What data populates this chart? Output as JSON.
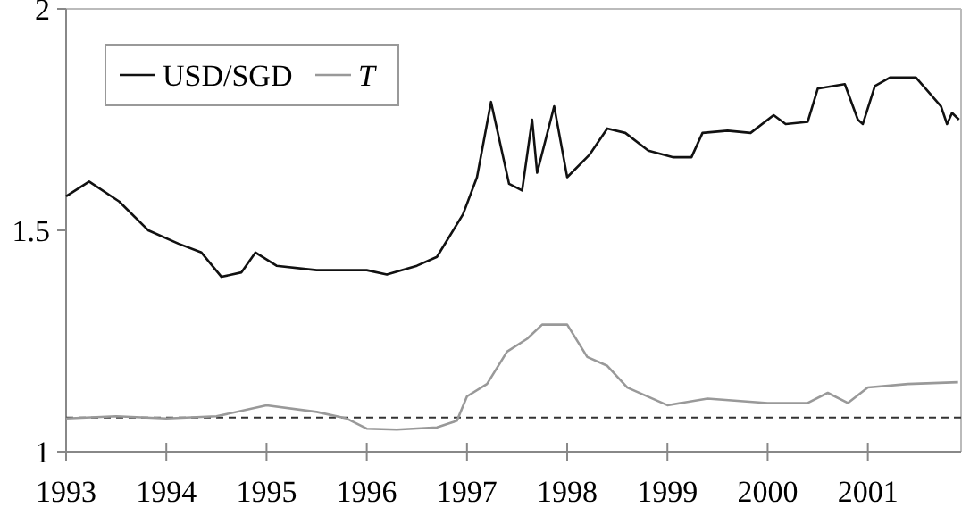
{
  "chart_data": {
    "type": "line",
    "xlim": [
      1993,
      2001.93
    ],
    "xticks": [
      1993,
      1994,
      1995,
      1996,
      1997,
      1998,
      1999,
      2000,
      2001
    ],
    "ylim": [
      1,
      2
    ],
    "yticks": [
      1,
      1.5,
      2
    ],
    "legend": "top left",
    "grid": false,
    "line_style": "solid",
    "series": [
      {
        "name": "USD/SGD",
        "color": "#111111",
        "x": [
          1993,
          1993.23,
          1993.53,
          1993.82,
          1994.12,
          1994.35,
          1994.55,
          1994.75,
          1994.89,
          1995.1,
          1995.5,
          1996,
          1996.2,
          1996.5,
          1996.7,
          1996.96,
          1997.1,
          1997.24,
          1997.42,
          1997.55,
          1997.65,
          1997.7,
          1997.87,
          1998,
          1998.22,
          1998.4,
          1998.58,
          1998.81,
          1999.06,
          1999.24,
          1999.35,
          1999.6,
          1999.83,
          2000.06,
          2000.18,
          2000.4,
          2000.5,
          2000.77,
          2000.9,
          2000.95,
          2001.07,
          2001.22,
          2001.48,
          2001.73,
          2001.79,
          2001.84,
          2001.91
        ],
        "values": [
          1.577,
          1.61,
          1.565,
          1.5,
          1.47,
          1.45,
          1.395,
          1.405,
          1.45,
          1.42,
          1.41,
          1.41,
          1.4,
          1.42,
          1.44,
          1.536,
          1.62,
          1.79,
          1.605,
          1.59,
          1.75,
          1.63,
          1.78,
          1.62,
          1.67,
          1.73,
          1.72,
          1.68,
          1.665,
          1.665,
          1.72,
          1.725,
          1.72,
          1.76,
          1.74,
          1.745,
          1.82,
          1.83,
          1.75,
          1.74,
          1.826,
          1.845,
          1.845,
          1.78,
          1.74,
          1.765,
          1.75
        ]
      },
      {
        "name": "T",
        "color": "#999999",
        "x": [
          1993,
          1993.5,
          1994,
          1994.5,
          1995,
          1995.5,
          1995.8,
          1996,
          1996.3,
          1996.7,
          1996.9,
          1997,
          1997.2,
          1997.4,
          1997.6,
          1997.75,
          1998,
          1998.2,
          1998.4,
          1998.6,
          1999,
          1999.4,
          2000,
          2000.4,
          2000.6,
          2000.8,
          2001,
          2001.4,
          2001.9
        ],
        "values": [
          1.075,
          1.08,
          1.075,
          1.08,
          1.105,
          1.09,
          1.075,
          1.052,
          1.05,
          1.055,
          1.07,
          1.125,
          1.153,
          1.226,
          1.255,
          1.287,
          1.287,
          1.214,
          1.194,
          1.145,
          1.105,
          1.12,
          1.11,
          1.11,
          1.133,
          1.11,
          1.145,
          1.153,
          1.157
        ]
      }
    ],
    "ref_lines": [
      {
        "axis": "y",
        "value": 1.077,
        "color": "#333333",
        "line_style": "dashed"
      }
    ]
  }
}
